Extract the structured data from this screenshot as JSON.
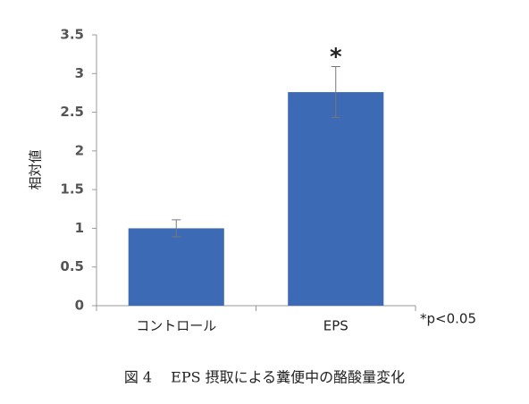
{
  "chart_data": {
    "type": "bar",
    "y_label": "相対値",
    "categories": [
      "コントロール",
      "EPS"
    ],
    "values": [
      1.0,
      2.76
    ],
    "errors": [
      0.11,
      0.33
    ],
    "color": "#3d6ab5",
    "ylim": [
      0,
      3.5
    ],
    "yticks": [
      0,
      0.5,
      1,
      1.5,
      2,
      2.5,
      3,
      3.5
    ],
    "grid": false,
    "significance_mark": "*",
    "significance_note": "*p<0.05",
    "caption": "図 4　 EPS 摂取による糞便中の酪酸量変化"
  }
}
